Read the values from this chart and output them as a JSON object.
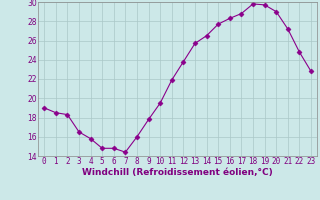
{
  "x": [
    0,
    1,
    2,
    3,
    4,
    5,
    6,
    7,
    8,
    9,
    10,
    11,
    12,
    13,
    14,
    15,
    16,
    17,
    18,
    19,
    20,
    21,
    22,
    23
  ],
  "y": [
    19.0,
    18.5,
    18.3,
    16.5,
    15.8,
    14.8,
    14.8,
    14.4,
    16.0,
    17.8,
    19.5,
    21.9,
    23.8,
    25.7,
    26.5,
    27.7,
    28.3,
    28.8,
    29.8,
    29.7,
    29.0,
    27.2,
    24.8,
    22.8
  ],
  "line_color": "#8b008b",
  "marker": "D",
  "markersize": 2.5,
  "linewidth": 0.8,
  "xlabel": "Windchill (Refroidissement éolien,°C)",
  "ylim": [
    14,
    30
  ],
  "xlim": [
    -0.5,
    23.5
  ],
  "yticks": [
    14,
    16,
    18,
    20,
    22,
    24,
    26,
    28,
    30
  ],
  "xticks": [
    0,
    1,
    2,
    3,
    4,
    5,
    6,
    7,
    8,
    9,
    10,
    11,
    12,
    13,
    14,
    15,
    16,
    17,
    18,
    19,
    20,
    21,
    22,
    23
  ],
  "bg_color": "#cce8e8",
  "grid_color": "#aac8c8",
  "tick_color": "#800080",
  "label_color": "#800080",
  "xlabel_fontsize": 6.5,
  "tick_fontsize": 5.5,
  "spine_color": "#888888"
}
